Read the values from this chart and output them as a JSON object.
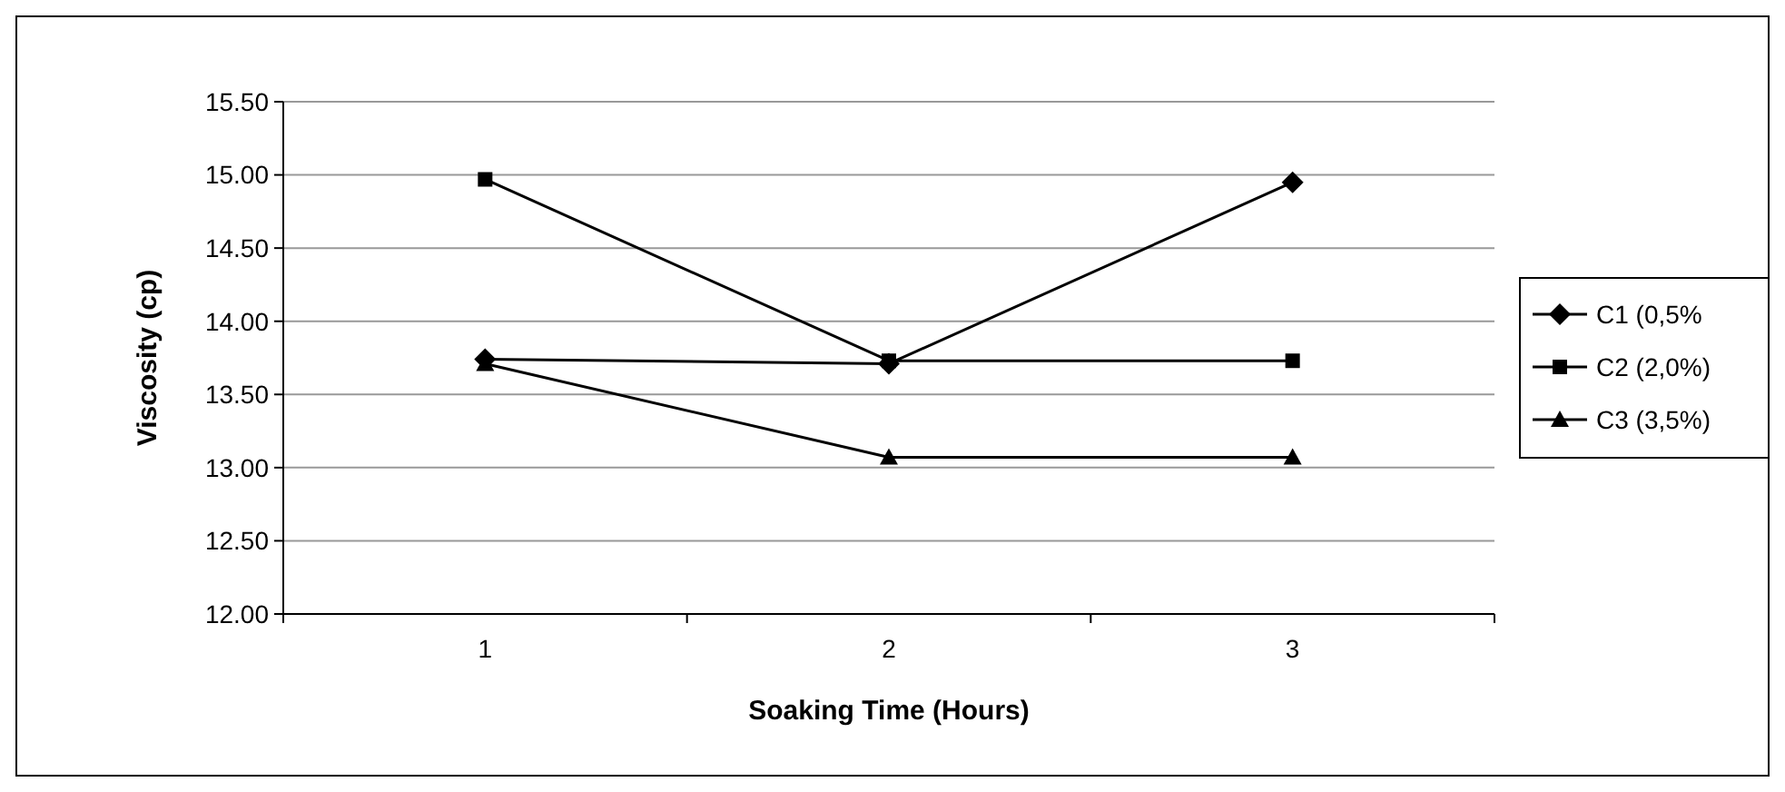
{
  "chart_data": {
    "type": "line",
    "xlabel": "Soaking Time (Hours)",
    "ylabel": "Viscosity (cp)",
    "categories": [
      "1",
      "2",
      "3"
    ],
    "series": [
      {
        "name": "C1 (0,5%",
        "color": "#000000",
        "marker": "diamond",
        "values": [
          13.74,
          13.71,
          14.95
        ]
      },
      {
        "name": "C2 (2,0%)",
        "color": "#000000",
        "marker": "square",
        "values": [
          14.97,
          13.73,
          13.73
        ]
      },
      {
        "name": "C3 (3,5%)",
        "color": "#000000",
        "marker": "triangle",
        "values": [
          13.71,
          13.07,
          13.07
        ]
      }
    ],
    "ylim": [
      12,
      15.5
    ],
    "yticks": [
      {
        "value": 12,
        "label": "12.00"
      },
      {
        "value": 12.5,
        "label": "12.50"
      },
      {
        "value": 13,
        "label": "13.00"
      },
      {
        "value": 13.5,
        "label": "13.50"
      },
      {
        "value": 14,
        "label": "14.00"
      },
      {
        "value": 14.5,
        "label": "14.50"
      },
      {
        "value": 15,
        "label": "15.00"
      },
      {
        "value": 15.5,
        "label": "15.50"
      }
    ],
    "grid": "y",
    "legend": "right",
    "line_style": "solid"
  }
}
